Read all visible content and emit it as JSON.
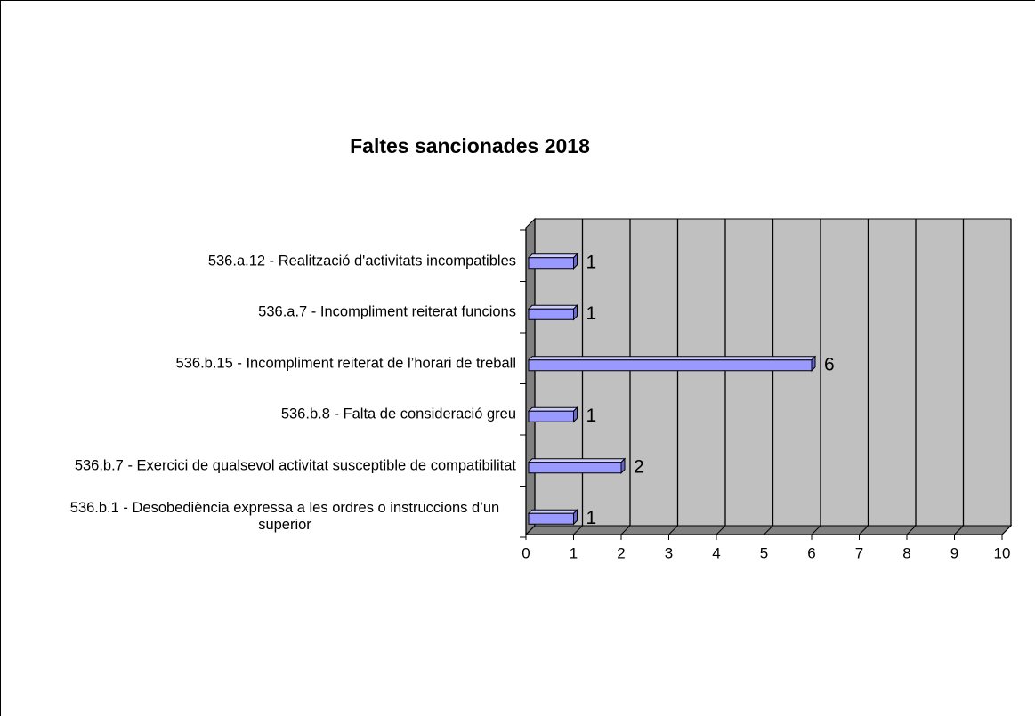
{
  "chart_data": {
    "type": "bar",
    "orientation": "horizontal",
    "title": "Faltes sancionades 2018",
    "categories": [
      "536.a.12 - Realització d'activitats incompatibles",
      "536.a.7 - Incompliment reiterat funcions",
      "536.b.15 - Incompliment reiterat de l’horari de treball",
      "536.b.8 - Falta de consideració greu",
      "536.b.7 - Exercici de qualsevol activitat susceptible de compatibilitat",
      "536.b.1 - Desobediència expressa a les ordres o instruccions d’un superior"
    ],
    "values": [
      1,
      1,
      6,
      1,
      2,
      1
    ],
    "color": "#9999ff",
    "wall_color": "#c0c0c0",
    "xlim": [
      0,
      10
    ],
    "xticks": [
      0,
      1,
      2,
      3,
      4,
      5,
      6,
      7,
      8,
      9,
      10
    ],
    "grid": true
  }
}
